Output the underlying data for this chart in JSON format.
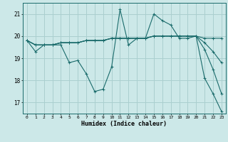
{
  "xlabel": "Humidex (Indice chaleur)",
  "background_color": "#cce8e8",
  "grid_color": "#aacfcf",
  "line_color": "#1a6b6b",
  "xlim": [
    -0.5,
    23.5
  ],
  "ylim": [
    16.5,
    21.5
  ],
  "yticks": [
    17,
    18,
    19,
    20,
    21
  ],
  "xticks": [
    0,
    1,
    2,
    3,
    4,
    5,
    6,
    7,
    8,
    9,
    10,
    11,
    12,
    13,
    14,
    15,
    16,
    17,
    18,
    19,
    20,
    21,
    22,
    23
  ],
  "series": [
    [
      19.8,
      19.3,
      19.6,
      19.6,
      19.6,
      18.8,
      18.9,
      18.3,
      17.5,
      17.6,
      18.6,
      21.2,
      19.6,
      19.9,
      19.9,
      21.0,
      20.7,
      20.5,
      19.9,
      19.9,
      20.0,
      18.1,
      17.4,
      16.6
    ],
    [
      19.8,
      19.6,
      19.6,
      19.6,
      19.7,
      19.7,
      19.7,
      19.8,
      19.8,
      19.8,
      19.9,
      19.9,
      19.9,
      19.9,
      19.9,
      20.0,
      20.0,
      20.0,
      20.0,
      20.0,
      20.0,
      19.9,
      19.9,
      19.9
    ],
    [
      19.8,
      19.6,
      19.6,
      19.6,
      19.7,
      19.7,
      19.7,
      19.8,
      19.8,
      19.8,
      19.9,
      19.9,
      19.9,
      19.9,
      19.9,
      20.0,
      20.0,
      20.0,
      20.0,
      20.0,
      20.0,
      19.7,
      19.3,
      18.8
    ],
    [
      19.8,
      19.6,
      19.6,
      19.6,
      19.7,
      19.7,
      19.7,
      19.8,
      19.8,
      19.8,
      19.9,
      19.9,
      19.9,
      19.9,
      19.9,
      20.0,
      20.0,
      20.0,
      20.0,
      20.0,
      20.0,
      19.4,
      18.5,
      17.4
    ]
  ]
}
